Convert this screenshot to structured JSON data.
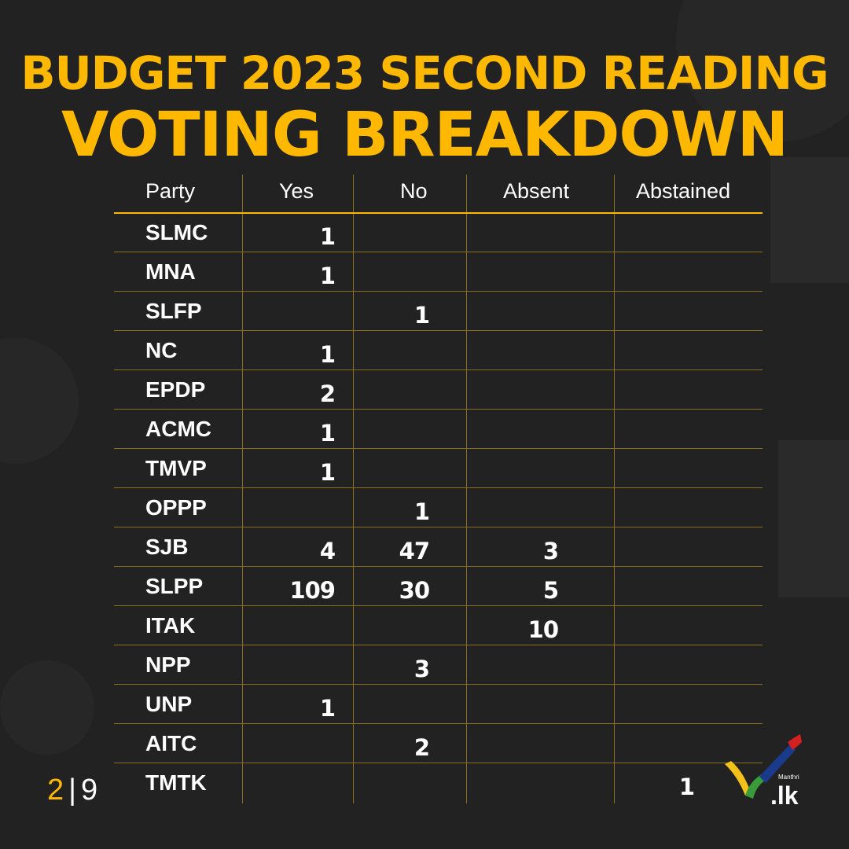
{
  "title": {
    "line1": "BUDGET 2023 SECOND READING",
    "line2": "VOTING BREAKDOWN"
  },
  "table": {
    "headers": [
      "Party",
      "Yes",
      "No",
      "Absent",
      "Abstained"
    ],
    "rows": [
      {
        "party": "SLMC",
        "yes": "1",
        "no": "",
        "absent": "",
        "abstained": ""
      },
      {
        "party": "MNA",
        "yes": "1",
        "no": "",
        "absent": "",
        "abstained": ""
      },
      {
        "party": "SLFP",
        "yes": "",
        "no": "1",
        "absent": "",
        "abstained": ""
      },
      {
        "party": "NC",
        "yes": "1",
        "no": "",
        "absent": "",
        "abstained": ""
      },
      {
        "party": "EPDP",
        "yes": "2",
        "no": "",
        "absent": "",
        "abstained": ""
      },
      {
        "party": "ACMC",
        "yes": "1",
        "no": "",
        "absent": "",
        "abstained": ""
      },
      {
        "party": "TMVP",
        "yes": "1",
        "no": "",
        "absent": "",
        "abstained": ""
      },
      {
        "party": "OPPP",
        "yes": "",
        "no": "1",
        "absent": "",
        "abstained": ""
      },
      {
        "party": "SJB",
        "yes": "4",
        "no": "47",
        "absent": "3",
        "abstained": ""
      },
      {
        "party": "SLPP",
        "yes": "109",
        "no": "30",
        "absent": "5",
        "abstained": ""
      },
      {
        "party": "ITAK",
        "yes": "",
        "no": "",
        "absent": "10",
        "abstained": ""
      },
      {
        "party": "NPP",
        "yes": "",
        "no": "3",
        "absent": "",
        "abstained": ""
      },
      {
        "party": "UNP",
        "yes": "1",
        "no": "",
        "absent": "",
        "abstained": ""
      },
      {
        "party": "AITC",
        "yes": "",
        "no": "2",
        "absent": "",
        "abstained": ""
      },
      {
        "party": "TMTK",
        "yes": "",
        "no": "",
        "absent": "",
        "abstained": "1"
      }
    ]
  },
  "pager": {
    "current": "2",
    "separator": "|",
    "total": "9"
  },
  "logo": {
    "text": ".lk",
    "small": "Manthri"
  },
  "colors": {
    "accent": "#FFB800",
    "background": "#222222",
    "text": "#ffffff",
    "grid": "#8a6e1c"
  }
}
